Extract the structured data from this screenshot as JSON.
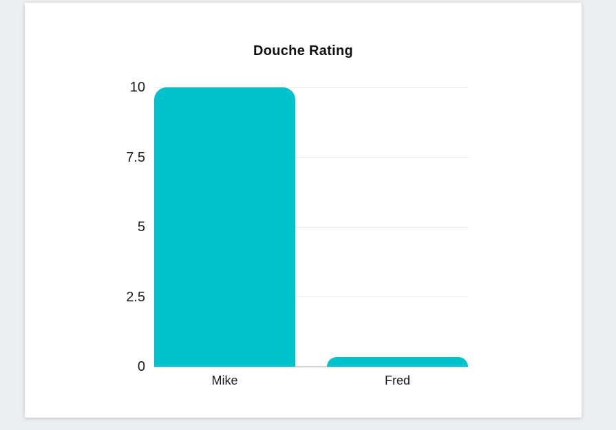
{
  "page": {
    "background": "#eceef0",
    "card_background": "#ffffff"
  },
  "chart_data": {
    "type": "bar",
    "title": "Douche Rating",
    "categories": [
      "Mike",
      "Fred"
    ],
    "values": [
      10,
      0.35
    ],
    "xlabel": "",
    "ylabel": "",
    "ylim": [
      0,
      10
    ],
    "yticks": [
      0,
      2.5,
      5,
      7.5,
      10
    ],
    "ytick_labels": [
      "0",
      "2.5",
      "5",
      "7.5",
      "10"
    ],
    "grid": true,
    "legend": "none",
    "bar_color": "#00c2cd",
    "gridline_color": "#e9e9e9",
    "baseline_color": "#d4d4d4",
    "text_color": "#1c1c1c",
    "title_color": "#111111"
  }
}
